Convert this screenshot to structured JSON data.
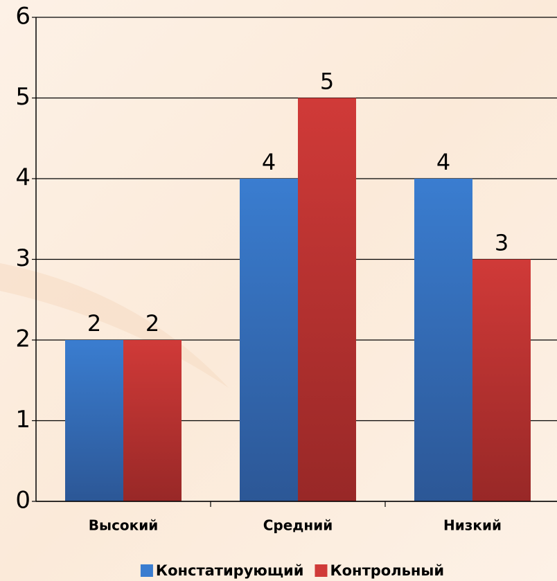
{
  "chart_data": {
    "type": "bar",
    "categories": [
      "Высокий",
      "Средний",
      "Низкий"
    ],
    "series": [
      {
        "name": "Констатирующий",
        "color": "#3a7dd0",
        "values": [
          2,
          4,
          4
        ]
      },
      {
        "name": "Контрольный",
        "color": "#d03a38",
        "values": [
          2,
          5,
          3
        ]
      }
    ],
    "ylim": [
      0,
      6
    ],
    "yticks": [
      0,
      1,
      2,
      3,
      4,
      5,
      6
    ],
    "grid": true,
    "data_labels": true,
    "legend": "bottom"
  }
}
